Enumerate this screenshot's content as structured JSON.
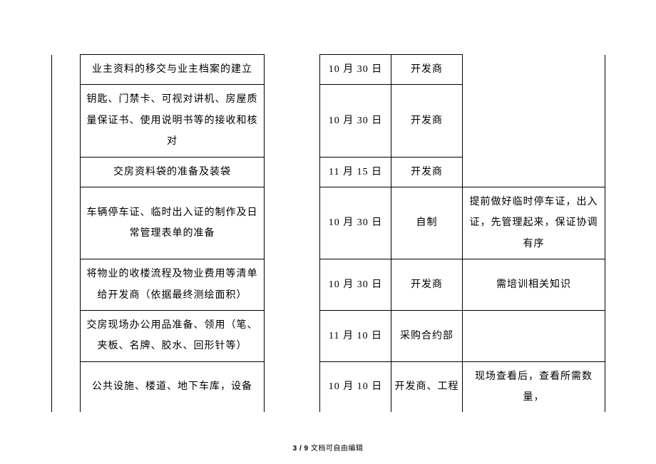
{
  "table": {
    "rows": [
      {
        "task": "业主资料的移交与业主档案的建立",
        "date": "10 月 30 日",
        "party": "开发商",
        "note": ""
      },
      {
        "task": "钥匙、门禁卡、可视对讲机、房屋质量保证书、使用说明书等的接收和核对",
        "date": "10 月 30 日",
        "party": "开发商",
        "note": ""
      },
      {
        "task": "交房资料袋的准备及装袋",
        "date": "11 月 15 日",
        "party": "开发商",
        "note": ""
      },
      {
        "task": "车辆停车证、临时出入证的制作及日常管理表单的准备",
        "date": "10 月 30 日",
        "party": "自制",
        "note": "提前做好临时停车证，出入证，先管理起来，保证协调有序"
      },
      {
        "task": "将物业的收楼流程及物业费用等清单给开发商（依据最终测绘面积）",
        "date": "10 月 30 日",
        "party": "开发商",
        "note": "需培训相关知识"
      },
      {
        "task": "交房现场办公用品准备、领用（笔、夹板、名牌、胶水、回形针等）",
        "date": "11 月 10 日",
        "party": "采购合约部",
        "note": ""
      },
      {
        "task": "公共设施、楼道、地下车库，设备",
        "date": "10 月 10 日",
        "party": "开发商、工程",
        "note": "现场查看后，查看所需数量，"
      }
    ]
  },
  "footer": {
    "page": "3 / 9",
    "text": "文档可自由编辑"
  }
}
